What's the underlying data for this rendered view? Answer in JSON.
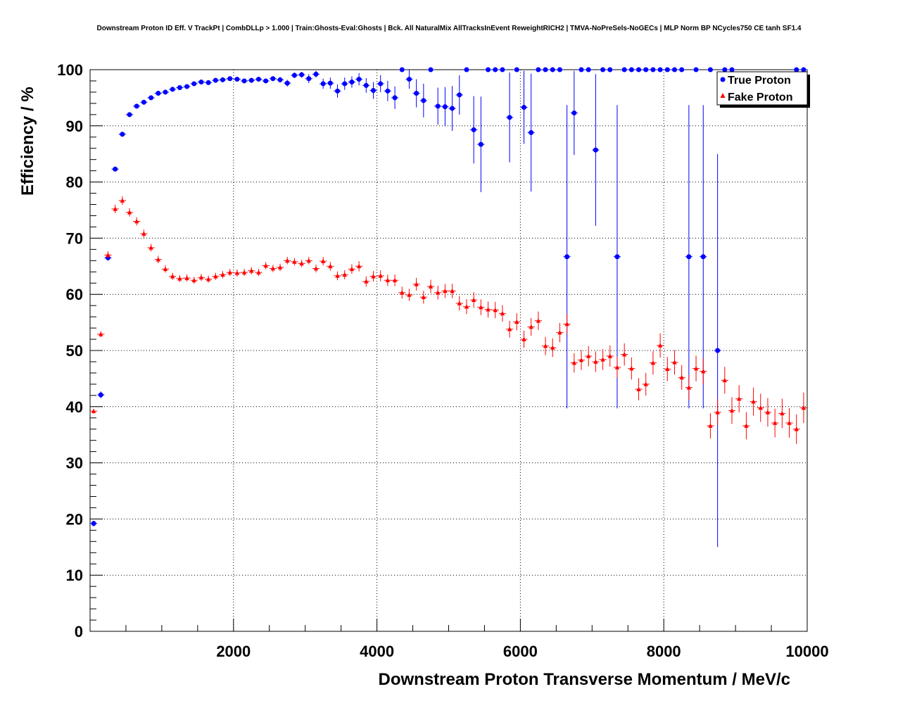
{
  "chart_data": {
    "type": "scatter",
    "title": "Downstream Proton ID Eff. V TrackPt | CombDLLp > 1.000 | Train:Ghosts-Eval:Ghosts | Bck. All NaturalMix AllTracksInEvent ReweightRICH2 | TMVA-NoPreSels-NoGECs | MLP Norm BP NCycles750 CE tanh SF1.4",
    "xlabel": "Downstream Proton Transverse Momentum / MeV/c",
    "ylabel": "Efficiency / %",
    "xlim": [
      0,
      10000
    ],
    "ylim": [
      0,
      100
    ],
    "xticks": [
      2000,
      4000,
      6000,
      8000,
      10000
    ],
    "yticks": [
      0,
      10,
      20,
      30,
      40,
      50,
      60,
      70,
      80,
      90,
      100
    ],
    "bin_width": 100,
    "grid": true,
    "legend_position": "top-right",
    "series": [
      {
        "name": "True Proton",
        "color": "#0000ff",
        "marker": "circle",
        "x": [
          50,
          150,
          250,
          350,
          450,
          550,
          650,
          750,
          850,
          950,
          1050,
          1150,
          1250,
          1350,
          1450,
          1550,
          1650,
          1750,
          1850,
          1950,
          2050,
          2150,
          2250,
          2350,
          2450,
          2550,
          2650,
          2750,
          2850,
          2950,
          3050,
          3150,
          3250,
          3350,
          3450,
          3550,
          3650,
          3750,
          3850,
          3950,
          4050,
          4150,
          4250,
          4350,
          4450,
          4550,
          4650,
          4750,
          4850,
          4950,
          5050,
          5150,
          5250,
          5350,
          5450,
          5550,
          5650,
          5750,
          5850,
          5950,
          6050,
          6150,
          6250,
          6350,
          6450,
          6550,
          6650,
          6750,
          6850,
          6950,
          7050,
          7150,
          7250,
          7350,
          7450,
          7550,
          7650,
          7750,
          7850,
          7950,
          8050,
          8150,
          8250,
          8350,
          8450,
          8550,
          8650,
          8750,
          8850,
          8950,
          9850,
          9950
        ],
        "y": [
          19.2,
          42.1,
          66.5,
          82.3,
          88.5,
          92.0,
          93.5,
          94.2,
          95.0,
          95.8,
          96.0,
          96.5,
          96.8,
          97.0,
          97.5,
          97.8,
          97.7,
          98.1,
          98.2,
          98.4,
          98.3,
          98.0,
          98.1,
          98.3,
          98.0,
          98.4,
          98.2,
          97.6,
          99.0,
          99.1,
          98.4,
          99.2,
          97.5,
          97.6,
          96.2,
          97.5,
          97.8,
          98.3,
          97.2,
          96.3,
          97.5,
          96.2,
          95.0,
          100,
          98.3,
          95.8,
          94.5,
          100,
          93.5,
          93.4,
          93.1,
          95.5,
          100,
          89.3,
          86.7,
          100,
          100,
          100,
          91.5,
          100,
          93.3,
          88.8,
          100,
          100,
          100,
          100,
          66.7,
          92.3,
          100,
          100,
          85.7,
          100,
          100,
          66.7,
          100,
          100,
          100,
          100,
          100,
          100,
          100,
          100,
          100,
          66.7,
          100,
          66.7,
          100,
          50.0,
          100,
          100,
          100,
          100
        ],
        "yerr": [
          0.5,
          0.6,
          0.5,
          0.4,
          0.4,
          0.3,
          0.3,
          0.3,
          0.3,
          0.3,
          0.3,
          0.3,
          0.3,
          0.3,
          0.3,
          0.3,
          0.3,
          0.3,
          0.3,
          0.3,
          0.3,
          0.4,
          0.4,
          0.4,
          0.4,
          0.4,
          0.5,
          0.6,
          0.5,
          0.5,
          0.8,
          0.6,
          0.9,
          1.0,
          1.2,
          1.1,
          1.0,
          1.1,
          1.3,
          1.5,
          1.5,
          1.8,
          2.0,
          0,
          1.7,
          2.5,
          3.0,
          0,
          3.3,
          3.5,
          4.0,
          3.5,
          0,
          6.0,
          8.5,
          0,
          0,
          0,
          8.0,
          0,
          6.5,
          10.5,
          0,
          0,
          0,
          0,
          27.0,
          7.5,
          0,
          0,
          13.5,
          0,
          0,
          27.0,
          0,
          0,
          0,
          0,
          0,
          0,
          0,
          0,
          0,
          27.0,
          0,
          27.0,
          0,
          35.0,
          0,
          0,
          0,
          0
        ]
      },
      {
        "name": "Fake Proton",
        "color": "#ff0000",
        "marker": "triangle",
        "x": [
          50,
          150,
          250,
          350,
          450,
          550,
          650,
          750,
          850,
          950,
          1050,
          1150,
          1250,
          1350,
          1450,
          1550,
          1650,
          1750,
          1850,
          1950,
          2050,
          2150,
          2250,
          2350,
          2450,
          2550,
          2650,
          2750,
          2850,
          2950,
          3050,
          3150,
          3250,
          3350,
          3450,
          3550,
          3650,
          3750,
          3850,
          3950,
          4050,
          4150,
          4250,
          4350,
          4450,
          4550,
          4650,
          4750,
          4850,
          4950,
          5050,
          5150,
          5250,
          5350,
          5450,
          5550,
          5650,
          5750,
          5850,
          5950,
          6050,
          6150,
          6250,
          6350,
          6450,
          6550,
          6650,
          6750,
          6850,
          6950,
          7050,
          7150,
          7250,
          7350,
          7450,
          7550,
          7650,
          7750,
          7850,
          7950,
          8050,
          8150,
          8250,
          8350,
          8450,
          8550,
          8650,
          8750,
          8850,
          8950,
          9050,
          9150,
          9250,
          9350,
          9450,
          9550,
          9650,
          9750,
          9850,
          9950
        ],
        "y": [
          39.2,
          52.9,
          67.0,
          75.2,
          76.7,
          74.6,
          73.0,
          70.8,
          68.3,
          66.2,
          64.5,
          63.2,
          62.8,
          62.9,
          62.5,
          63.0,
          62.7,
          63.2,
          63.5,
          63.9,
          63.8,
          63.9,
          64.2,
          63.9,
          65.1,
          64.6,
          64.8,
          66.0,
          65.8,
          65.5,
          66.0,
          64.6,
          65.9,
          65.0,
          63.3,
          63.5,
          64.5,
          65.0,
          62.3,
          63.2,
          63.3,
          62.5,
          62.5,
          60.3,
          59.9,
          61.8,
          59.5,
          61.4,
          60.3,
          60.6,
          60.6,
          58.4,
          57.8,
          59.0,
          57.7,
          57.3,
          57.2,
          56.6,
          53.8,
          55.1,
          52.0,
          54.2,
          55.3,
          50.8,
          50.5,
          53.2,
          54.7,
          47.8,
          48.3,
          49.0,
          48.0,
          48.4,
          49.0,
          47.0,
          49.3,
          46.8,
          43.1,
          44.0,
          47.8,
          50.9,
          46.7,
          47.9,
          45.2,
          43.4,
          46.8,
          46.3,
          36.6,
          39.0,
          44.7,
          39.3,
          41.4,
          36.6,
          40.9,
          39.8,
          39.0,
          37.1,
          38.8,
          37.1,
          36.0,
          39.8
        ]
      }
    ]
  }
}
